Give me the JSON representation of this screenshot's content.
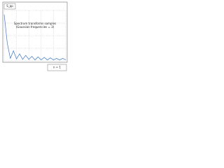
{
  "chart_data": {
    "type": "line",
    "title": "S_pp",
    "subtitle": "Spectrum transforms samples",
    "annotation": "(Gaussian frequencies = 3)",
    "legend_label": "n = 1",
    "x": [
      0,
      0.5,
      1,
      1.5,
      2,
      2.5,
      3,
      3.5,
      4,
      4.5,
      5,
      5.5,
      6,
      6.5,
      7,
      7.5,
      8,
      8.5,
      9,
      9.5,
      10
    ],
    "values": [
      0.92,
      0.35,
      0.05,
      0.2,
      0.04,
      0.14,
      0.03,
      0.11,
      0.03,
      0.09,
      0.02,
      0.08,
      0.02,
      0.07,
      0.02,
      0.06,
      0.02,
      0.05,
      0.02,
      0.05,
      0.02
    ],
    "color": "#3a78c8",
    "xlim": [
      0,
      10
    ],
    "ylim": [
      0,
      1
    ],
    "xticks": [
      0,
      2,
      4,
      6,
      8,
      10
    ],
    "yticks": [
      0,
      0.25,
      0.5,
      0.75,
      1
    ],
    "grid": true
  }
}
